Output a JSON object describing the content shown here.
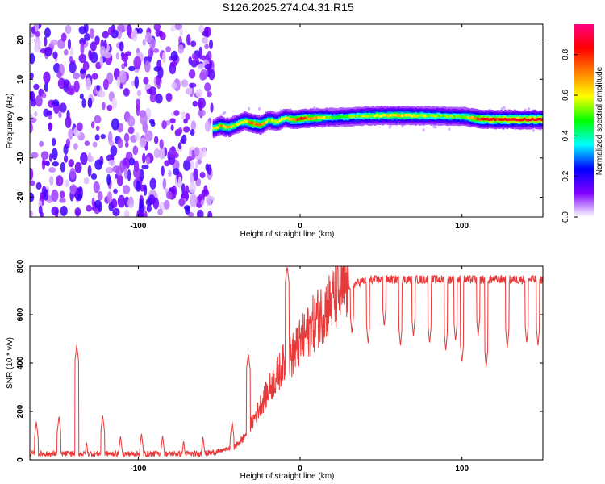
{
  "title": "S126.2025.274.04.31.R15",
  "chart_data": [
    {
      "type": "heatmap",
      "name": "spectrogram",
      "xlabel": "Height of straight line (km)",
      "ylabel": "Frequency (Hz)",
      "xlim": [
        -167,
        150
      ],
      "ylim": [
        -25,
        24
      ],
      "xticks": [
        -100,
        0,
        100
      ],
      "yticks": [
        -20,
        -10,
        0,
        10,
        20
      ],
      "colorbar": {
        "label": "Normalized spectral amplitude",
        "range": [
          0.0,
          0.95
        ],
        "ticks": [
          0.0,
          0.2,
          0.4,
          0.6,
          0.8
        ],
        "colors": [
          "#ffffff",
          "#7f00ff",
          "#0000ff",
          "#00ffff",
          "#00ff00",
          "#ffff00",
          "#ff8000",
          "#ff0000",
          "#ff0080"
        ]
      },
      "noise_region_x": [
        -167,
        -54
      ],
      "carrier_line": {
        "x": [
          -54,
          -50,
          -45,
          -40,
          -35,
          -30,
          -25,
          -20,
          -15,
          -10,
          -5,
          0,
          10,
          20,
          40,
          60,
          80,
          100,
          110,
          120,
          130,
          150
        ],
        "y": [
          -2.5,
          -1.8,
          -2.3,
          -1.5,
          -0.6,
          -1.2,
          -1.6,
          -0.4,
          -0.9,
          0.2,
          -0.3,
          0,
          0.2,
          0.3,
          0.7,
          0.8,
          0.7,
          0.5,
          -0.1,
          -0.2,
          -0.2,
          -0.2
        ],
        "amplitude": [
          0.6,
          0.75,
          0.7,
          0.6,
          0.65,
          0.8,
          0.8,
          0.6,
          0.65,
          0.6,
          0.75,
          0.85,
          0.7,
          0.5,
          0.6,
          0.7,
          0.6,
          0.55,
          0.85,
          0.88,
          0.9,
          0.9
        ]
      }
    },
    {
      "type": "line",
      "name": "snr",
      "xlabel": "Height of straight line (km)",
      "ylabel": "SNR (10 * v/v)",
      "xlim": [
        -167,
        150
      ],
      "ylim": [
        0,
        800
      ],
      "xticks": [
        -100,
        0,
        100
      ],
      "yticks": [
        0,
        200,
        400,
        600,
        800
      ],
      "color": "#e83a3a",
      "envelope": {
        "x": [
          -167,
          -60,
          -50,
          -40,
          -35,
          -30,
          -25,
          -20,
          -15,
          -10,
          -5,
          0,
          5,
          10,
          15,
          20,
          25,
          30,
          40,
          50,
          150
        ],
        "y": [
          25,
          25,
          35,
          55,
          90,
          150,
          220,
          280,
          340,
          400,
          430,
          480,
          530,
          580,
          620,
          660,
          690,
          720,
          740,
          745,
          745
        ]
      },
      "spikes": [
        {
          "x": -163,
          "y": 160
        },
        {
          "x": -149,
          "y": 180
        },
        {
          "x": -138,
          "y": 475
        },
        {
          "x": -132,
          "y": 75
        },
        {
          "x": -122,
          "y": 185
        },
        {
          "x": -111,
          "y": 100
        },
        {
          "x": -98,
          "y": 110
        },
        {
          "x": -85,
          "y": 100
        },
        {
          "x": -72,
          "y": 80
        },
        {
          "x": -60,
          "y": 95
        },
        {
          "x": -42,
          "y": 160
        },
        {
          "x": -32,
          "y": 440
        },
        {
          "x": -8,
          "y": 800
        }
      ],
      "dips": [
        {
          "x": 32,
          "y": 520
        },
        {
          "x": 42,
          "y": 480
        },
        {
          "x": 52,
          "y": 550
        },
        {
          "x": 62,
          "y": 470
        },
        {
          "x": 70,
          "y": 510
        },
        {
          "x": 80,
          "y": 480
        },
        {
          "x": 90,
          "y": 450
        },
        {
          "x": 96,
          "y": 490
        },
        {
          "x": 100,
          "y": 400
        },
        {
          "x": 110,
          "y": 510
        },
        {
          "x": 115,
          "y": 380
        },
        {
          "x": 128,
          "y": 460
        },
        {
          "x": 140,
          "y": 480
        },
        {
          "x": 147,
          "y": 470
        }
      ]
    }
  ]
}
